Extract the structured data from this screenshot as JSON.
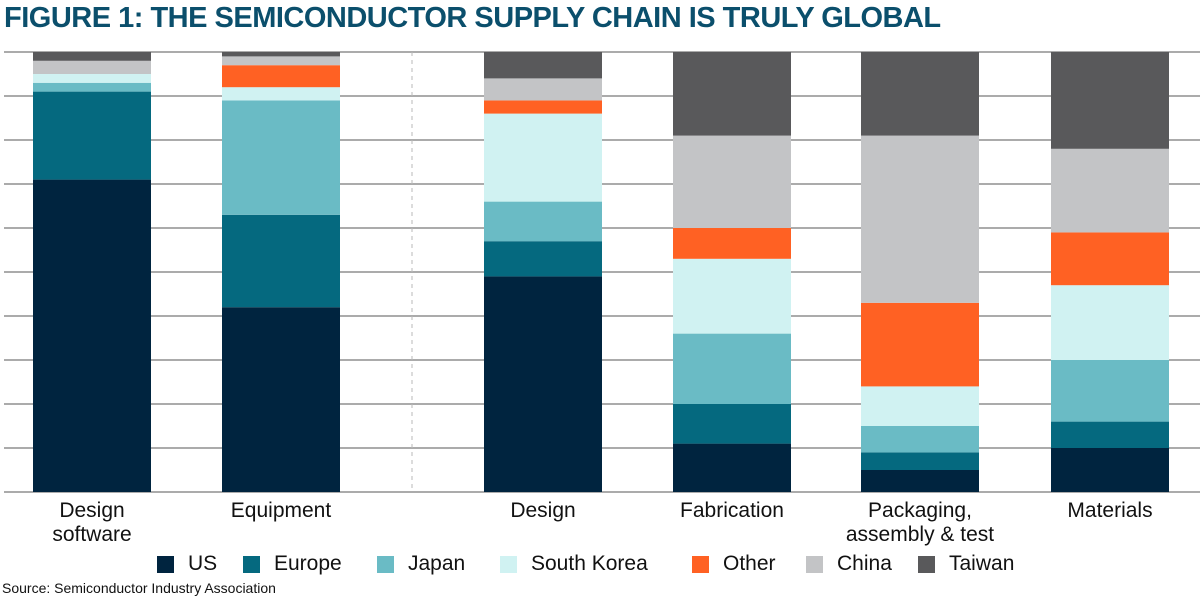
{
  "title": "FIGURE 1: THE SEMICONDUCTOR SUPPLY CHAIN IS TRULY GLOBAL",
  "source": "Source: Semiconductor Industry Association",
  "chart_data": {
    "type": "bar",
    "stacked": true,
    "title": "FIGURE 1: THE SEMICONDUCTOR SUPPLY CHAIN IS TRULY GLOBAL",
    "xlabel": "",
    "ylabel": "",
    "ylim": [
      0,
      100
    ],
    "grid": true,
    "legend_position": "bottom",
    "categories": [
      [
        "Design",
        "software"
      ],
      [
        "Equipment"
      ],
      [
        "Design"
      ],
      [
        "Fabrication"
      ],
      [
        "Packaging,",
        "assembly & test"
      ],
      [
        "Materials"
      ]
    ],
    "series": [
      {
        "name": "US",
        "color": "#00243f",
        "values": [
          71,
          42,
          49,
          11,
          5,
          10
        ]
      },
      {
        "name": "Europe",
        "color": "#05697f",
        "values": [
          20,
          21,
          8,
          9,
          4,
          6
        ]
      },
      {
        "name": "Japan",
        "color": "#6abbc5",
        "values": [
          2,
          26,
          9,
          16,
          6,
          14
        ]
      },
      {
        "name": "South Korea",
        "color": "#d0f2f2",
        "values": [
          2,
          3,
          20,
          17,
          9,
          17
        ]
      },
      {
        "name": "Other",
        "color": "#ff6123",
        "values": [
          0,
          5,
          3,
          7,
          19,
          12
        ]
      },
      {
        "name": "China",
        "color": "#c3c4c6",
        "values": [
          3,
          2,
          5,
          21,
          38,
          19
        ]
      },
      {
        "name": "Taiwan",
        "color": "#59595b",
        "values": [
          2,
          1,
          6,
          19,
          19,
          22
        ]
      }
    ]
  }
}
